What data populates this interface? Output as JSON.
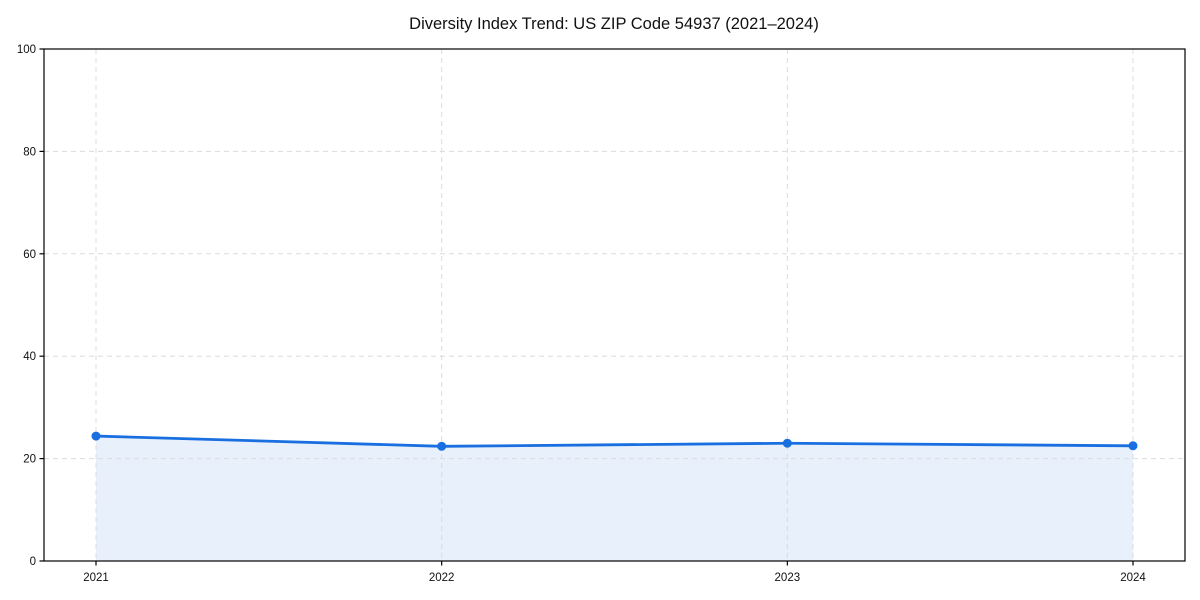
{
  "chart_data": {
    "type": "line",
    "subtype": "line-with-area-fill",
    "title": "Diversity Index Trend: US ZIP Code 54937 (2021–2024)",
    "series": [
      {
        "name": "Diversity Index",
        "x": [
          2021,
          2022,
          2023,
          2024
        ],
        "values": [
          24.4,
          22.4,
          23.0,
          22.5
        ],
        "marker": "circle",
        "filled_to_zero": true
      }
    ],
    "categories": [
      "2021",
      "2022",
      "2023",
      "2024"
    ],
    "xlabel": "",
    "ylabel": "",
    "ylim": [
      0,
      100
    ],
    "yticks": [
      0,
      20,
      40,
      60,
      80,
      100
    ],
    "xtick_labels": [
      "2021",
      "2022",
      "2023",
      "2024"
    ],
    "grid": "dashed-both-axes",
    "legend": "none",
    "colors": {
      "line": "#1a6fe0",
      "marker": "#1a6fe0",
      "area_fill": "#e8f0fc",
      "grid": "#dcdcdc",
      "spine": "#000000",
      "text": "#111111",
      "background": "#ffffff"
    }
  }
}
